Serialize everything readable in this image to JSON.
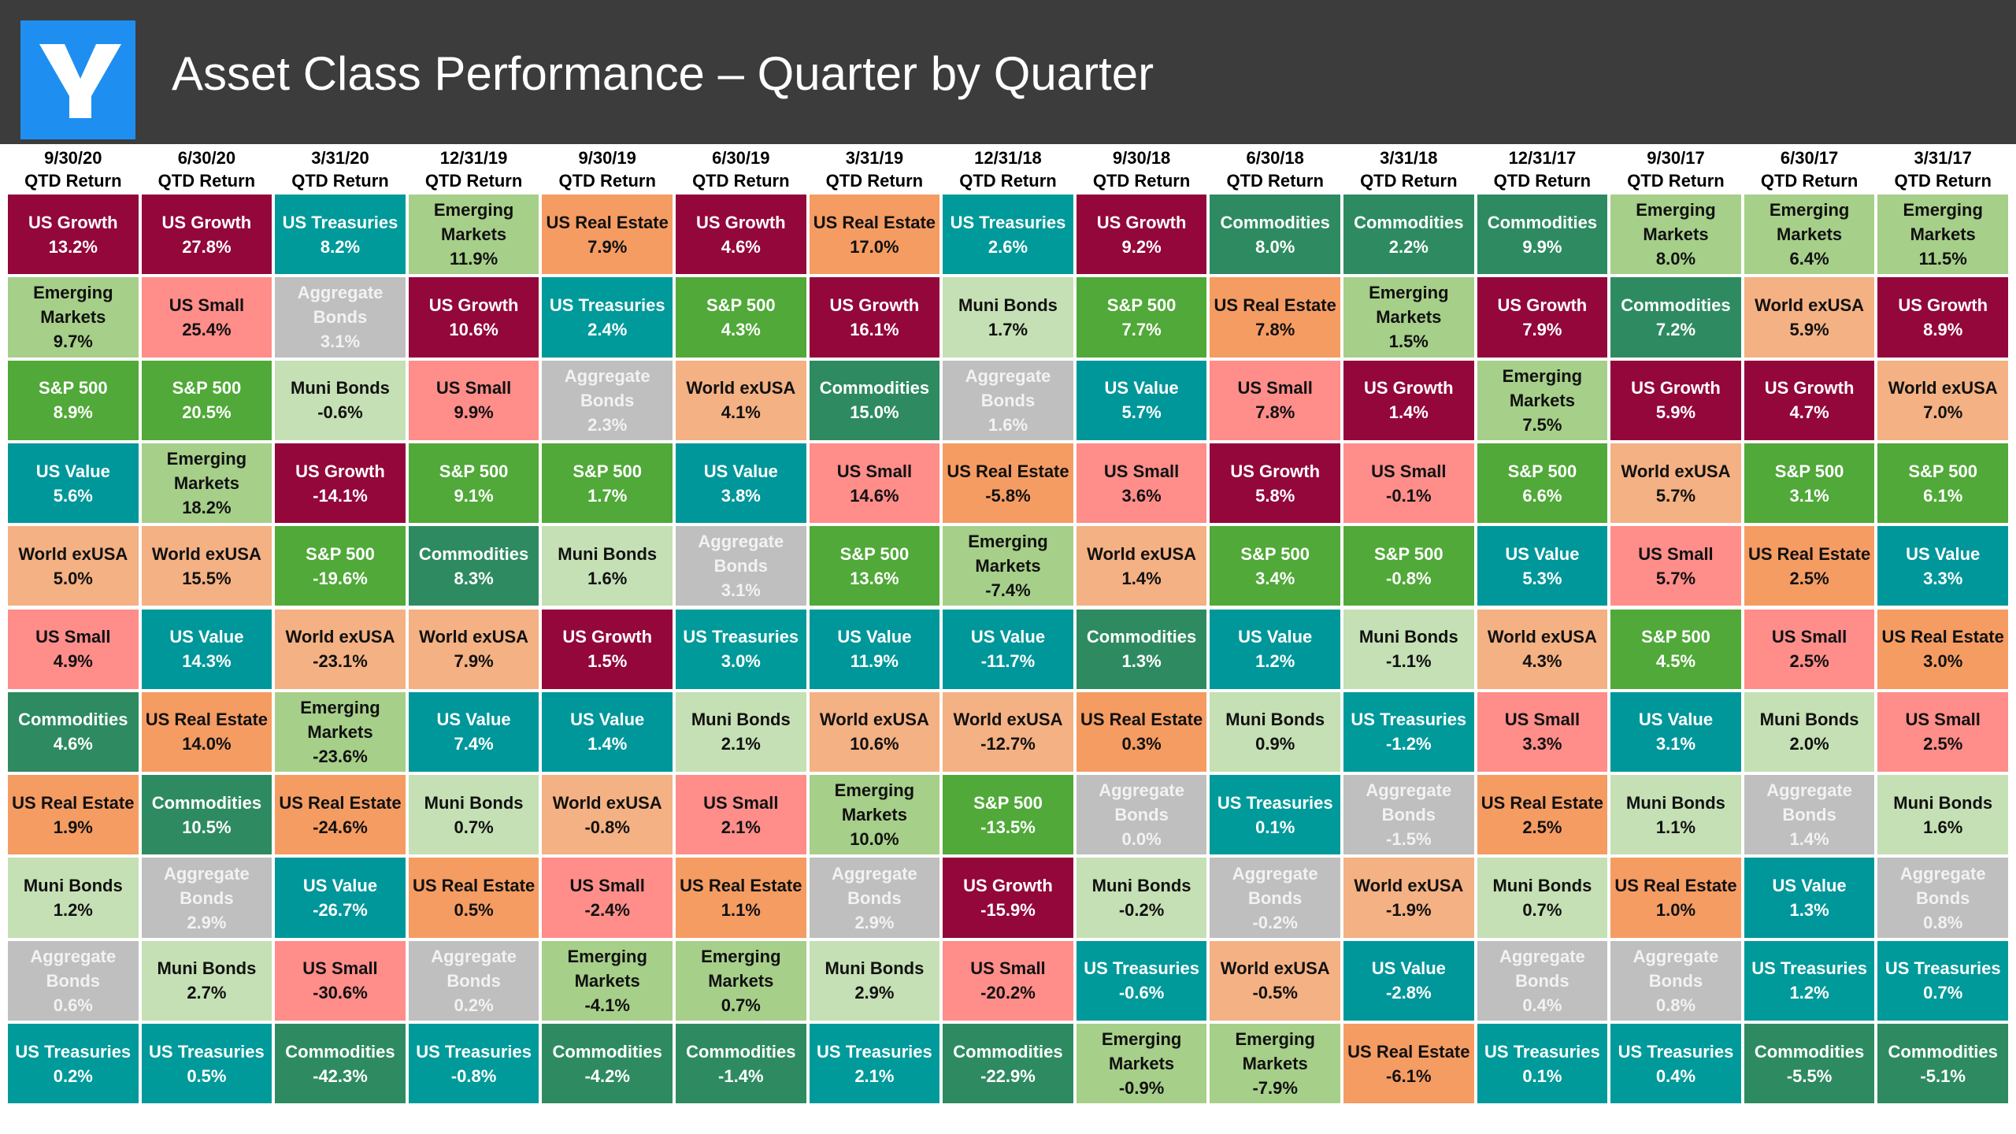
{
  "title": "Asset Class Performance – Quarter by Quarter",
  "colors": {
    "US Growth": "#93073a",
    "Emerging Markets": "#a6cf89",
    "S&P 500": "#50a938",
    "US Value": "#00979a",
    "World exUSA": "#f4b183",
    "US Small": "#ff8d8a",
    "Commodities": "#2e8b61",
    "US Real Estate": "#f59c63",
    "Muni Bonds": "#c5e0b4",
    "Aggregate Bonds": "#bfbfbf",
    "US Treasuries": "#009a9a"
  },
  "chart_data": {
    "type": "table",
    "title": "Asset Class Performance – Quarter by Quarter",
    "row_label": "QTD Return",
    "quarters": [
      "9/30/20",
      "6/30/20",
      "3/31/20",
      "12/31/19",
      "9/30/19",
      "6/30/19",
      "3/31/19",
      "12/31/18",
      "9/30/18",
      "6/30/18",
      "3/31/18",
      "12/31/17",
      "9/30/17",
      "6/30/17",
      "3/31/17"
    ],
    "columns": [
      [
        [
          "US Growth",
          "13.2%"
        ],
        [
          "Emerging Markets",
          "9.7%"
        ],
        [
          "S&P 500",
          "8.9%"
        ],
        [
          "US Value",
          "5.6%"
        ],
        [
          "World exUSA",
          "5.0%"
        ],
        [
          "US Small",
          "4.9%"
        ],
        [
          "Commodities",
          "4.6%"
        ],
        [
          "US Real Estate",
          "1.9%"
        ],
        [
          "Muni Bonds",
          "1.2%"
        ],
        [
          "Aggregate Bonds",
          "0.6%"
        ],
        [
          "US Treasuries",
          "0.2%"
        ]
      ],
      [
        [
          "US Growth",
          "27.8%"
        ],
        [
          "US Small",
          "25.4%"
        ],
        [
          "S&P 500",
          "20.5%"
        ],
        [
          "Emerging Markets",
          "18.2%"
        ],
        [
          "World exUSA",
          "15.5%"
        ],
        [
          "US Value",
          "14.3%"
        ],
        [
          "US Real Estate",
          "14.0%"
        ],
        [
          "Commodities",
          "10.5%"
        ],
        [
          "Aggregate Bonds",
          "2.9%"
        ],
        [
          "Muni Bonds",
          "2.7%"
        ],
        [
          "US Treasuries",
          "0.5%"
        ]
      ],
      [
        [
          "US Treasuries",
          "8.2%"
        ],
        [
          "Aggregate Bonds",
          "3.1%"
        ],
        [
          "Muni Bonds",
          "-0.6%"
        ],
        [
          "US Growth",
          "-14.1%"
        ],
        [
          "S&P 500",
          "-19.6%"
        ],
        [
          "World exUSA",
          "-23.1%"
        ],
        [
          "Emerging Markets",
          "-23.6%"
        ],
        [
          "US Real Estate",
          "-24.6%"
        ],
        [
          "US Value",
          "-26.7%"
        ],
        [
          "US Small",
          "-30.6%"
        ],
        [
          "Commodities",
          "-42.3%"
        ]
      ],
      [
        [
          "Emerging Markets",
          "11.9%"
        ],
        [
          "US Growth",
          "10.6%"
        ],
        [
          "US Small",
          "9.9%"
        ],
        [
          "S&P 500",
          "9.1%"
        ],
        [
          "Commodities",
          "8.3%"
        ],
        [
          "World exUSA",
          "7.9%"
        ],
        [
          "US Value",
          "7.4%"
        ],
        [
          "Muni Bonds",
          "0.7%"
        ],
        [
          "US Real Estate",
          "0.5%"
        ],
        [
          "Aggregate Bonds",
          "0.2%"
        ],
        [
          "US Treasuries",
          "-0.8%"
        ]
      ],
      [
        [
          "US Real Estate",
          "7.9%"
        ],
        [
          "US Treasuries",
          "2.4%"
        ],
        [
          "Aggregate Bonds",
          "2.3%"
        ],
        [
          "S&P 500",
          "1.7%"
        ],
        [
          "Muni Bonds",
          "1.6%"
        ],
        [
          "US Growth",
          "1.5%"
        ],
        [
          "US Value",
          "1.4%"
        ],
        [
          "World exUSA",
          "-0.8%"
        ],
        [
          "US Small",
          "-2.4%"
        ],
        [
          "Emerging Markets",
          "-4.1%"
        ],
        [
          "Commodities",
          "-4.2%"
        ]
      ],
      [
        [
          "US Growth",
          "4.6%"
        ],
        [
          "S&P 500",
          "4.3%"
        ],
        [
          "World exUSA",
          "4.1%"
        ],
        [
          "US Value",
          "3.8%"
        ],
        [
          "Aggregate Bonds",
          "3.1%"
        ],
        [
          "US Treasuries",
          "3.0%"
        ],
        [
          "Muni Bonds",
          "2.1%"
        ],
        [
          "US Small",
          "2.1%"
        ],
        [
          "US Real Estate",
          "1.1%"
        ],
        [
          "Emerging Markets",
          "0.7%"
        ],
        [
          "Commodities",
          "-1.4%"
        ]
      ],
      [
        [
          "US Real Estate",
          "17.0%"
        ],
        [
          "US Growth",
          "16.1%"
        ],
        [
          "Commodities",
          "15.0%"
        ],
        [
          "US Small",
          "14.6%"
        ],
        [
          "S&P 500",
          "13.6%"
        ],
        [
          "US Value",
          "11.9%"
        ],
        [
          "World exUSA",
          "10.6%"
        ],
        [
          "Emerging Markets",
          "10.0%"
        ],
        [
          "Aggregate Bonds",
          "2.9%"
        ],
        [
          "Muni Bonds",
          "2.9%"
        ],
        [
          "US Treasuries",
          "2.1%"
        ]
      ],
      [
        [
          "US Treasuries",
          "2.6%"
        ],
        [
          "Muni Bonds",
          "1.7%"
        ],
        [
          "Aggregate Bonds",
          "1.6%"
        ],
        [
          "US Real Estate",
          "-5.8%"
        ],
        [
          "Emerging Markets",
          "-7.4%"
        ],
        [
          "US Value",
          "-11.7%"
        ],
        [
          "World exUSA",
          "-12.7%"
        ],
        [
          "S&P 500",
          "-13.5%"
        ],
        [
          "US Growth",
          "-15.9%"
        ],
        [
          "US Small",
          "-20.2%"
        ],
        [
          "Commodities",
          "-22.9%"
        ]
      ],
      [
        [
          "US Growth",
          "9.2%"
        ],
        [
          "S&P 500",
          "7.7%"
        ],
        [
          "US Value",
          "5.7%"
        ],
        [
          "US Small",
          "3.6%"
        ],
        [
          "World exUSA",
          "1.4%"
        ],
        [
          "Commodities",
          "1.3%"
        ],
        [
          "US Real Estate",
          "0.3%"
        ],
        [
          "Aggregate Bonds",
          "0.0%"
        ],
        [
          "Muni Bonds",
          "-0.2%"
        ],
        [
          "US Treasuries",
          "-0.6%"
        ],
        [
          "Emerging Markets",
          "-0.9%"
        ]
      ],
      [
        [
          "Commodities",
          "8.0%"
        ],
        [
          "US Real Estate",
          "7.8%"
        ],
        [
          "US Small",
          "7.8%"
        ],
        [
          "US Growth",
          "5.8%"
        ],
        [
          "S&P 500",
          "3.4%"
        ],
        [
          "US Value",
          "1.2%"
        ],
        [
          "Muni Bonds",
          "0.9%"
        ],
        [
          "US Treasuries",
          "0.1%"
        ],
        [
          "Aggregate Bonds",
          "-0.2%"
        ],
        [
          "World exUSA",
          "-0.5%"
        ],
        [
          "Emerging Markets",
          "-7.9%"
        ]
      ],
      [
        [
          "Commodities",
          "2.2%"
        ],
        [
          "Emerging Markets",
          "1.5%"
        ],
        [
          "US Growth",
          "1.4%"
        ],
        [
          "US Small",
          "-0.1%"
        ],
        [
          "S&P 500",
          "-0.8%"
        ],
        [
          "Muni Bonds",
          "-1.1%"
        ],
        [
          "US Treasuries",
          "-1.2%"
        ],
        [
          "Aggregate Bonds",
          "-1.5%"
        ],
        [
          "World exUSA",
          "-1.9%"
        ],
        [
          "US Value",
          "-2.8%"
        ],
        [
          "US Real Estate",
          "-6.1%"
        ]
      ],
      [
        [
          "Commodities",
          "9.9%"
        ],
        [
          "US Growth",
          "7.9%"
        ],
        [
          "Emerging Markets",
          "7.5%"
        ],
        [
          "S&P 500",
          "6.6%"
        ],
        [
          "US Value",
          "5.3%"
        ],
        [
          "World exUSA",
          "4.3%"
        ],
        [
          "US Small",
          "3.3%"
        ],
        [
          "US Real Estate",
          "2.5%"
        ],
        [
          "Muni Bonds",
          "0.7%"
        ],
        [
          "Aggregate Bonds",
          "0.4%"
        ],
        [
          "US Treasuries",
          "0.1%"
        ]
      ],
      [
        [
          "Emerging Markets",
          "8.0%"
        ],
        [
          "Commodities",
          "7.2%"
        ],
        [
          "US Growth",
          "5.9%"
        ],
        [
          "World exUSA",
          "5.7%"
        ],
        [
          "US Small",
          "5.7%"
        ],
        [
          "S&P 500",
          "4.5%"
        ],
        [
          "US Value",
          "3.1%"
        ],
        [
          "Muni Bonds",
          "1.1%"
        ],
        [
          "US Real Estate",
          "1.0%"
        ],
        [
          "Aggregate Bonds",
          "0.8%"
        ],
        [
          "US Treasuries",
          "0.4%"
        ]
      ],
      [
        [
          "Emerging Markets",
          "6.4%"
        ],
        [
          "World exUSA",
          "5.9%"
        ],
        [
          "US Growth",
          "4.7%"
        ],
        [
          "S&P 500",
          "3.1%"
        ],
        [
          "US Real Estate",
          "2.5%"
        ],
        [
          "US Small",
          "2.5%"
        ],
        [
          "Muni Bonds",
          "2.0%"
        ],
        [
          "Aggregate Bonds",
          "1.4%"
        ],
        [
          "US Value",
          "1.3%"
        ],
        [
          "US Treasuries",
          "1.2%"
        ],
        [
          "Commodities",
          "-5.5%"
        ]
      ],
      [
        [
          "Emerging Markets",
          "11.5%"
        ],
        [
          "US Growth",
          "8.9%"
        ],
        [
          "World exUSA",
          "7.0%"
        ],
        [
          "S&P 500",
          "6.1%"
        ],
        [
          "US Value",
          "3.3%"
        ],
        [
          "US Real Estate",
          "3.0%"
        ],
        [
          "US Small",
          "2.5%"
        ],
        [
          "Muni Bonds",
          "1.6%"
        ],
        [
          "Aggregate Bonds",
          "0.8%"
        ],
        [
          "US Treasuries",
          "0.7%"
        ],
        [
          "Commodities",
          "-5.1%"
        ]
      ]
    ]
  }
}
